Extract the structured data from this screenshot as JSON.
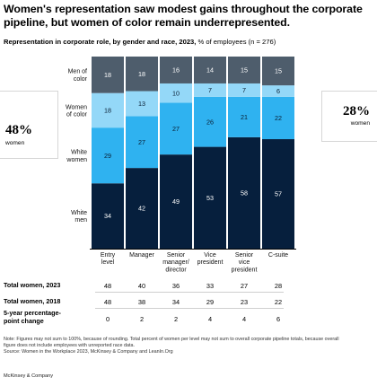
{
  "title": "Women's representation saw modest gains throughout the corporate pipeline, but women of color remain underrepresented.",
  "subtitle": {
    "bold": "Representation in corporate role, by gender and race, 2023,",
    "rest": " % of employees (n = 276)"
  },
  "chart_data": {
    "type": "bar",
    "stacked": true,
    "categories": [
      [
        "Entry",
        "level"
      ],
      [
        "Manager"
      ],
      [
        "Senior",
        "manager/",
        "director"
      ],
      [
        "Vice",
        "president"
      ],
      [
        "Senior",
        "vice",
        "president"
      ],
      [
        "C-suite"
      ]
    ],
    "series": [
      {
        "name": "White men",
        "label_lines": [
          "White",
          "men"
        ],
        "color": "#061f3d",
        "values": [
          34,
          42,
          49,
          53,
          58,
          57
        ]
      },
      {
        "name": "White women",
        "label_lines": [
          "White",
          "women"
        ],
        "color": "#2fb2f0",
        "values": [
          29,
          27,
          27,
          26,
          21,
          22
        ]
      },
      {
        "name": "Women of color",
        "label_lines": [
          "Women",
          "of color"
        ],
        "color": "#94d8f8",
        "values": [
          18,
          13,
          10,
          7,
          7,
          6
        ]
      },
      {
        "name": "Men of color",
        "label_lines": [
          "Men of",
          "color"
        ],
        "color": "#4e5d6c",
        "values": [
          18,
          18,
          16,
          14,
          15,
          15
        ]
      }
    ],
    "label_colors": {
      "dark": "#ffffff",
      "light": "#0a1e33"
    },
    "ylim": [
      0,
      100
    ]
  },
  "callouts": {
    "left": {
      "value": "48%",
      "label": "women"
    },
    "right": {
      "value": "28%",
      "label": "women"
    }
  },
  "table": {
    "rows": [
      {
        "label_lines": [
          "Total women, 2023"
        ],
        "values": [
          "48",
          "40",
          "36",
          "33",
          "27",
          "28"
        ]
      },
      {
        "label_lines": [
          "Total women, 2018"
        ],
        "values": [
          "48",
          "38",
          "34",
          "29",
          "23",
          "22"
        ]
      },
      {
        "label_lines": [
          "5-year percentage-",
          "point change"
        ],
        "values": [
          "0",
          "2",
          "2",
          "4",
          "4",
          "6"
        ]
      }
    ]
  },
  "note": {
    "line1": "Note: Figures may not sum to 100%, because of rounding. Total percent of women per level may not sum to overall corporate pipeline totals, because overall",
    "line2": "figure does not include employees with unreported race data.",
    "line3": "Source: Women in the Workplace 2023, McKinsey & Company and LeanIn.Org"
  },
  "footer": "McKinsey & Company"
}
